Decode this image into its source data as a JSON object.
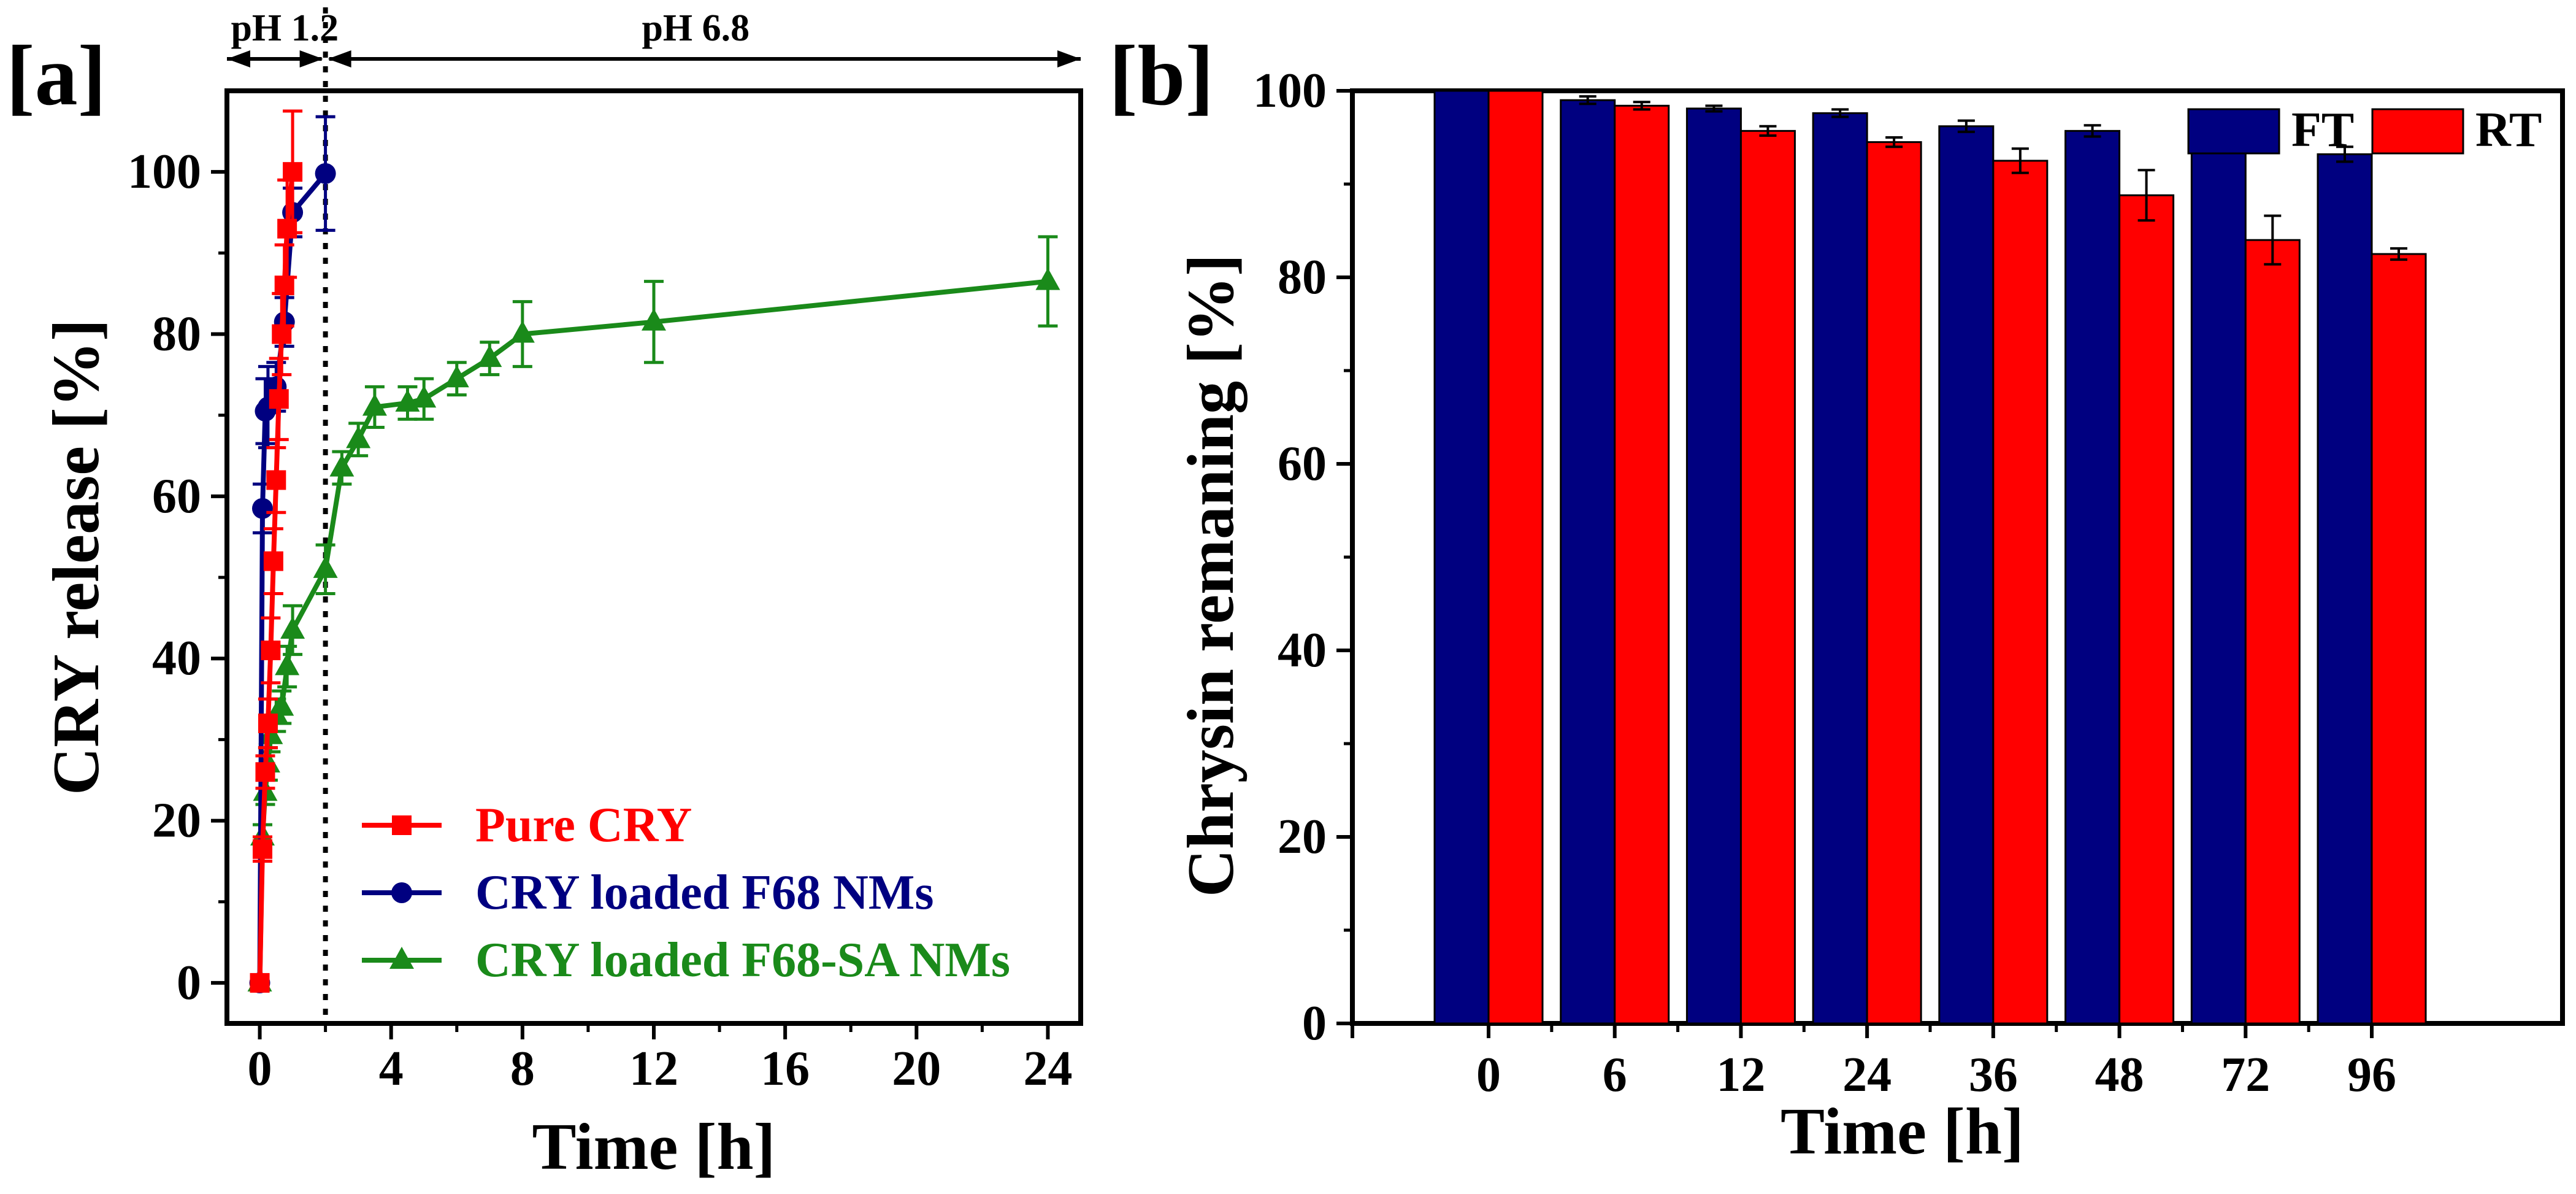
{
  "chart_data": [
    {
      "type": "line",
      "panel_label": "[a]",
      "xlabel": "Time [h]",
      "ylabel": "CRY release [%]",
      "xlim": [
        -1,
        25
      ],
      "ylim": [
        -5,
        110
      ],
      "xticks": [
        0,
        4,
        8,
        12,
        16,
        20,
        24
      ],
      "yticks": [
        0,
        20,
        40,
        60,
        80,
        100
      ],
      "legend_position": "bottom-center",
      "annotations": {
        "ph_acid": "pH 1.2",
        "ph_neutral": "pH 6.8",
        "boundary_x": 2
      },
      "series": [
        {
          "name": "Pure CRY",
          "color": "#ff0000",
          "marker": "square",
          "x": [
            0,
            0.083,
            0.167,
            0.25,
            0.333,
            0.417,
            0.5,
            0.583,
            0.667,
            0.75,
            0.833,
            1.0
          ],
          "y": [
            0,
            16.5,
            26,
            32,
            41,
            52,
            62,
            72,
            80,
            86,
            93,
            100
          ],
          "err": [
            0,
            1.5,
            2,
            3,
            4,
            4,
            4,
            5,
            5,
            5,
            6,
            7.5
          ]
        },
        {
          "name": "CRY loaded F68 NMs",
          "color": "#000080",
          "marker": "circle",
          "x": [
            0,
            0.083,
            0.167,
            0.25,
            0.5,
            0.75,
            1.0,
            2.0
          ],
          "y": [
            0,
            58.5,
            70.5,
            71,
            73.5,
            81.5,
            95,
            99.8
          ],
          "err": [
            0,
            3,
            4,
            5,
            3,
            3,
            3,
            7
          ]
        },
        {
          "name": "CRY loaded F68-SA NMs",
          "color": "#1a8a1a",
          "marker": "triangle",
          "x": [
            0,
            0.083,
            0.167,
            0.25,
            0.333,
            0.5,
            0.667,
            0.833,
            1.0,
            2.0,
            2.5,
            3.0,
            3.5,
            4.5,
            5.0,
            6.0,
            7.0,
            8.0,
            12.0,
            24.0
          ],
          "y": [
            0,
            18,
            23.5,
            27,
            30.5,
            33,
            34,
            39,
            43.5,
            51,
            63.5,
            67,
            71,
            71.5,
            72,
            74.5,
            77,
            80,
            81.5,
            86.5
          ],
          "err": [
            0,
            1.5,
            1.5,
            2,
            2,
            2,
            2,
            2.5,
            3,
            3,
            2,
            2,
            2.5,
            2,
            2.5,
            2,
            2,
            4,
            5,
            5.5
          ]
        }
      ]
    },
    {
      "type": "bar",
      "panel_label": "[b]",
      "xlabel": "Time [h]",
      "ylabel": "Chrysin remaning [%]",
      "ylim": [
        0,
        100
      ],
      "yticks": [
        0,
        20,
        40,
        60,
        80,
        100
      ],
      "legend_position": "top-right",
      "categories": [
        "0",
        "6",
        "12",
        "24",
        "36",
        "48",
        "72",
        "96"
      ],
      "series": [
        {
          "name": "FT",
          "color": "#000080",
          "values": [
            100,
            99,
            98.1,
            97.6,
            96.2,
            95.7,
            93.9,
            93.2
          ],
          "err": [
            0,
            0.4,
            0.3,
            0.4,
            0.6,
            0.6,
            0.2,
            0.8
          ]
        },
        {
          "name": "RT",
          "color": "#ff0000",
          "values": [
            100,
            98.4,
            95.7,
            94.5,
            92.5,
            88.8,
            84,
            82.5
          ],
          "err": [
            0,
            0.4,
            0.5,
            0.5,
            1.3,
            2.7,
            2.6,
            0.6
          ]
        }
      ]
    }
  ]
}
